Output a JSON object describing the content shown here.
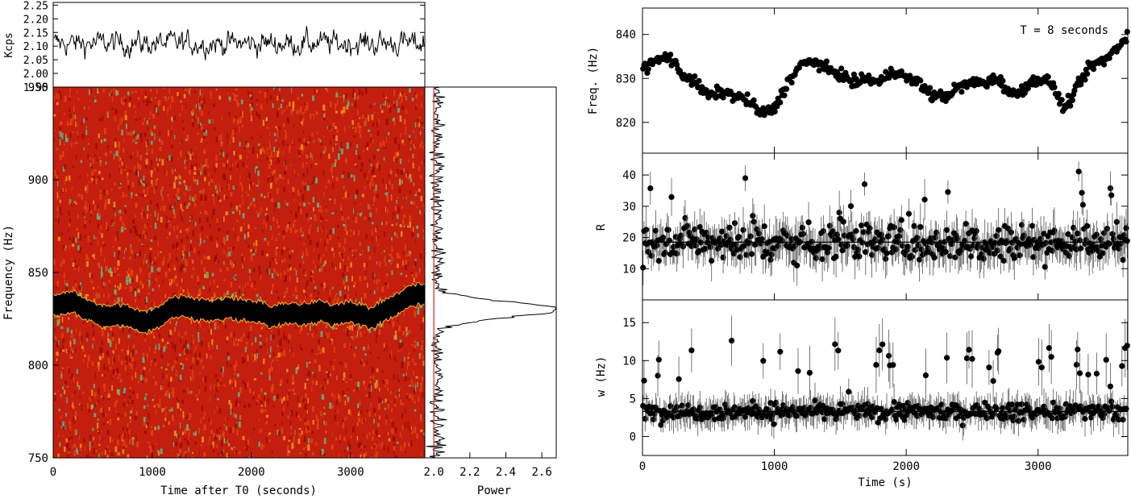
{
  "chart_data": [
    {
      "id": "lightcurve",
      "type": "line",
      "ylabel": "Kcps",
      "ylim": [
        1.95,
        2.26
      ],
      "yticks": [
        1.95,
        2.0,
        2.05,
        2.1,
        2.15,
        2.2,
        2.25
      ],
      "ytick_labels": [
        "1.95",
        "2.00",
        "2.05",
        "2.10",
        "2.15",
        "2.20",
        "2.25"
      ],
      "xlim": [
        0,
        3750
      ],
      "mean": 2.11,
      "noise": 0.045,
      "npoints": 480
    },
    {
      "id": "dynamic-power-spectrum",
      "type": "heatmap",
      "xlabel": "Time after T0 (seconds)",
      "ylabel": "Frequency (Hz)",
      "xlim": [
        0,
        3750
      ],
      "ylim": [
        750,
        950
      ],
      "xticks": [
        0,
        1000,
        2000,
        3000
      ],
      "xtick_labels": [
        "0",
        "1000",
        "2000",
        "3000"
      ],
      "yticks": [
        750,
        800,
        850,
        900,
        950
      ],
      "ytick_labels": [
        "750",
        "800",
        "850",
        "900",
        "950"
      ],
      "colors": {
        "background": "#c41e0e",
        "dark": "#8c0a04",
        "warm": "#e84a10",
        "hot": "#f5b41c",
        "peak": "#49c892",
        "track": "#000000"
      },
      "track_times": [
        0,
        100,
        200,
        300,
        400,
        500,
        600,
        700,
        800,
        900,
        1000,
        1100,
        1200,
        1300,
        1400,
        1500,
        1600,
        1700,
        1800,
        1900,
        2000,
        2100,
        2200,
        2300,
        2400,
        2500,
        2600,
        2700,
        2800,
        2900,
        3000,
        3100,
        3200,
        3300,
        3400,
        3500,
        3600,
        3700
      ],
      "track_freqs": [
        832,
        833,
        834,
        831,
        829,
        826,
        827,
        827,
        825,
        823,
        824,
        828,
        831,
        832,
        831,
        830,
        829,
        830,
        831,
        830,
        829,
        828,
        826,
        827,
        828,
        827,
        828,
        829,
        827,
        828,
        829,
        827,
        825,
        828,
        831,
        834,
        837,
        838
      ]
    },
    {
      "id": "average-power",
      "type": "line",
      "xlabel": "Power",
      "xlim": [
        1.95,
        2.68
      ],
      "xticks": [
        2.0,
        2.2,
        2.4,
        2.6
      ],
      "xtick_labels": [
        "2.0",
        "2.2",
        "2.4",
        "2.6"
      ],
      "ylim": [
        750,
        950
      ],
      "threshold": 2.0,
      "baseline": 2.02,
      "peak_freq": 830,
      "peak_power": 2.68,
      "colors": {
        "threshold": "#e0201c"
      }
    },
    {
      "id": "frequency-track",
      "type": "scatter",
      "ylabel": "Freq. (Hz)",
      "ylim": [
        813,
        846
      ],
      "yticks": [
        820,
        830,
        840
      ],
      "ytick_labels": [
        "820",
        "830",
        "840"
      ],
      "xlim": [
        0,
        3680
      ],
      "annotation": "T = 8 seconds",
      "x_points_from": [
        0,
        3680
      ],
      "npoints": 460,
      "track_times": [
        0,
        100,
        200,
        300,
        400,
        500,
        600,
        700,
        800,
        900,
        1000,
        1100,
        1200,
        1300,
        1400,
        1500,
        1600,
        1700,
        1800,
        1900,
        2000,
        2100,
        2200,
        2300,
        2400,
        2500,
        2600,
        2700,
        2800,
        2900,
        3000,
        3100,
        3200,
        3300,
        3400,
        3500,
        3600,
        3680
      ],
      "track_freqs": [
        832,
        834,
        835,
        831,
        829,
        826,
        827,
        826,
        825,
        822,
        823,
        829,
        833,
        834,
        832,
        831,
        829,
        830,
        829,
        832,
        830,
        829,
        826,
        826,
        828,
        829,
        829,
        830,
        826,
        828,
        830,
        829,
        823,
        828,
        833,
        834,
        837,
        840
      ]
    },
    {
      "id": "amplitude-R",
      "type": "scatter",
      "ylabel": "R",
      "ylim": [
        0,
        47
      ],
      "yticks": [
        10,
        20,
        30,
        40
      ],
      "ytick_labels": [
        "10",
        "20",
        "30",
        "40"
      ],
      "xlim": [
        0,
        3680
      ],
      "mean": 18.5,
      "spread": 5.5,
      "err": 5,
      "npoints": 460
    },
    {
      "id": "width-w",
      "type": "scatter",
      "ylabel": "w (Hz)",
      "ylim": [
        -2.5,
        18
      ],
      "yticks": [
        0,
        5,
        10,
        15
      ],
      "ytick_labels": [
        "0",
        "5",
        "10",
        "15"
      ],
      "xlabel": "Time (s)",
      "xlim": [
        0,
        3680
      ],
      "xticks": [
        0,
        1000,
        2000,
        3000
      ],
      "xtick_labels": [
        "0",
        "1000",
        "2000",
        "3000"
      ],
      "mean": 3.3,
      "spread": 1.4,
      "err": 1.6,
      "npoints": 460
    }
  ]
}
